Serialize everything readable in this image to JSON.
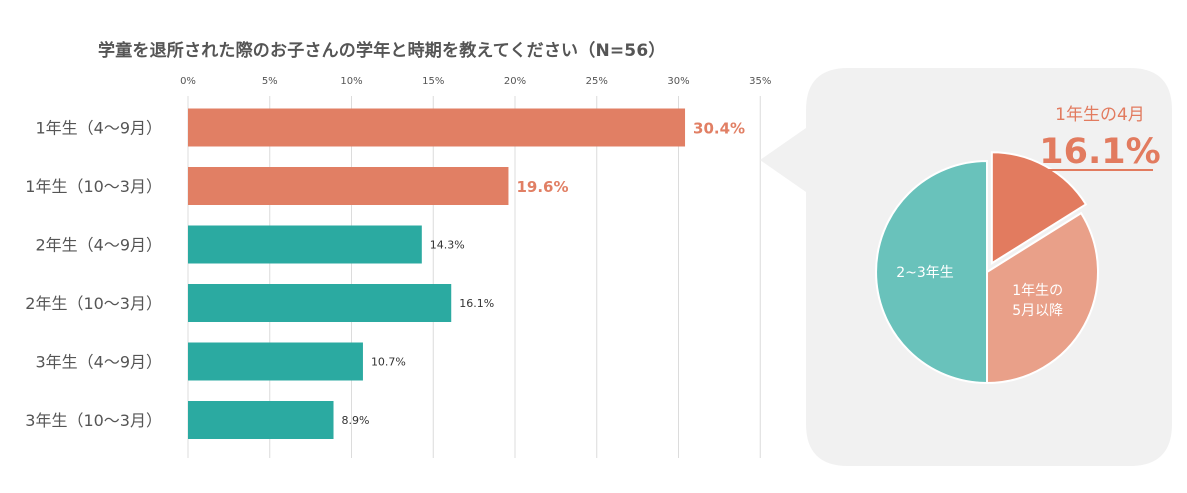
{
  "title": "学童を退所された際のお子さんの学年と時期を教えてください（N=56）",
  "colors": {
    "grade1": "#e17f64",
    "other": "#2baaa1",
    "grid": "#dcdcdc",
    "panel": "#f1f1f1",
    "pie_highlight": "#e27b5f",
    "pie_rest_grade1": "#e9a089",
    "pie_other": "#69c2bb",
    "highlight_text": "#e27b5f"
  },
  "chart_data": [
    {
      "type": "bar",
      "orientation": "horizontal",
      "xlim": [
        0,
        35
      ],
      "xticks": [
        "0%",
        "5%",
        "10%",
        "15%",
        "20%",
        "25%",
        "30%",
        "35%"
      ],
      "xtick_values": [
        0,
        5,
        10,
        15,
        20,
        25,
        30,
        35
      ],
      "grid": true,
      "categories": [
        "1年生（4〜9月）",
        "1年生（10〜3月）",
        "2年生（4〜9月）",
        "2年生（10〜3月）",
        "3年生（4〜9月）",
        "3年生（10〜3月）"
      ],
      "values": [
        30.4,
        19.6,
        14.3,
        16.1,
        10.7,
        8.9
      ],
      "data_labels": [
        "30.4%",
        "19.6%",
        "14.3%",
        "16.1%",
        "10.7%",
        "8.9%"
      ],
      "bar_groups": [
        "grade1",
        "grade1",
        "other",
        "other",
        "other",
        "other"
      ]
    },
    {
      "type": "pie",
      "slices": [
        {
          "label": "1年生の4月",
          "value": 16.1,
          "group": "highlight",
          "label_text": ""
        },
        {
          "label": "1年生の5月以降",
          "value": 33.9,
          "group": "rest_grade1",
          "label_text": "1年生の\n5月以降"
        },
        {
          "label": "2~3年生",
          "value": 50.0,
          "group": "other",
          "label_text": "2~3年生"
        }
      ],
      "callout": {
        "label": "1年生の4月",
        "value": "16.1%"
      }
    }
  ]
}
